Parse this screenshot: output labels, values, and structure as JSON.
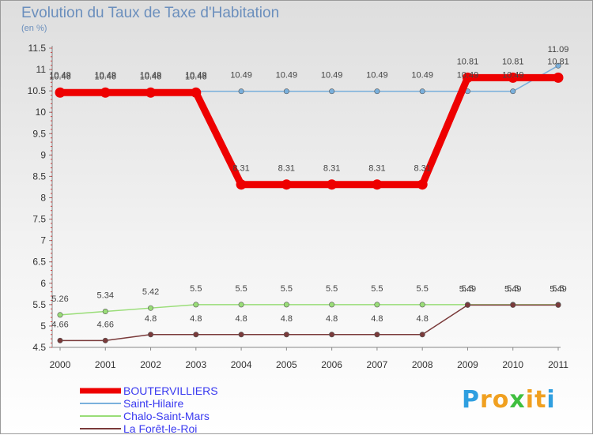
{
  "chart_data": {
    "type": "line",
    "title": "Evolution du Taux de Taxe d'Habitation",
    "subtitle": "(en %)",
    "x": [
      "2000",
      "2001",
      "2002",
      "2003",
      "2004",
      "2005",
      "2006",
      "2007",
      "2008",
      "2009",
      "2010",
      "2011"
    ],
    "yticks": [
      "4.5",
      "5",
      "5.5",
      "6",
      "6.5",
      "7",
      "7.5",
      "8",
      "8.5",
      "9",
      "9.5",
      "10",
      "10.5",
      "11",
      "11.5"
    ],
    "ylim": [
      4.5,
      11.5
    ],
    "grid": false,
    "legend_position": "bottom-left",
    "series": [
      {
        "name": "BOUTERVILLIERS",
        "color": "#ee0000",
        "values": [
          10.46,
          10.46,
          10.46,
          10.46,
          8.31,
          8.31,
          8.31,
          8.31,
          8.31,
          10.81,
          10.81,
          10.81
        ],
        "labels": [
          "10.46",
          "10.46",
          "10.46",
          "10.46",
          "8.31",
          "8.31",
          "8.31",
          "8.31",
          "8.31",
          "10.81",
          "10.81",
          "10.81"
        ]
      },
      {
        "name": "Saint-Hilaire",
        "color": "#7ab0dc",
        "values": [
          10.49,
          10.49,
          10.49,
          10.49,
          10.49,
          10.49,
          10.49,
          10.49,
          10.49,
          10.49,
          10.49,
          11.09
        ],
        "labels": [
          "10.49",
          "10.49",
          "10.49",
          "10.49",
          "10.49",
          "10.49",
          "10.49",
          "10.49",
          "10.49",
          "10.49",
          "10.49",
          "11.09"
        ]
      },
      {
        "name": "Chalo-Saint-Mars",
        "color": "#99dd77",
        "values": [
          5.26,
          5.34,
          5.42,
          5.5,
          5.5,
          5.5,
          5.5,
          5.5,
          5.5,
          5.5,
          5.5,
          5.5
        ],
        "labels": [
          "5.26",
          "5.34",
          "5.42",
          "5.5",
          "5.5",
          "5.5",
          "5.5",
          "5.5",
          "5.5",
          "5.5",
          "5.5",
          "5.5"
        ]
      },
      {
        "name": "La Forêt-le-Roi",
        "color": "#7a3a3a",
        "values": [
          4.66,
          4.66,
          4.8,
          4.8,
          4.8,
          4.8,
          4.8,
          4.8,
          4.8,
          5.49,
          5.49,
          5.49
        ],
        "labels": [
          "4.66",
          "4.66",
          "4.8",
          "4.8",
          "4.8",
          "4.8",
          "4.8",
          "4.8",
          "4.8",
          "5.49",
          "5.49",
          "5.49"
        ]
      }
    ]
  },
  "logo": {
    "letters": [
      "P",
      "r",
      "o",
      "x",
      "i",
      "t",
      "i"
    ],
    "colors": [
      "#2f9fe0",
      "#f0a020",
      "#f0a020",
      "#3fbf3f",
      "#f0a020",
      "#f0a020",
      "#2f9fe0"
    ]
  }
}
